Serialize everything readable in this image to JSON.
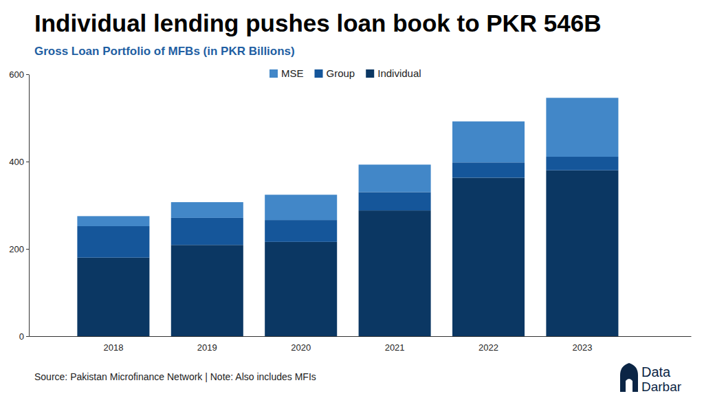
{
  "chart_data": {
    "type": "bar",
    "title": "Individual lending pushes loan book to PKR 546B",
    "subtitle": "Gross Loan Portfolio of MFBs (in PKR Billions)",
    "source": "Source: Pakistan Microfinance Network | Note: Also includes MFIs",
    "logo": [
      "Data",
      "Darbar"
    ],
    "categories": [
      "2018",
      "2019",
      "2020",
      "2021",
      "2022",
      "2023"
    ],
    "series": [
      {
        "name": "MSE",
        "color": "#4287c8",
        "values": [
          23,
          36,
          58,
          63,
          94,
          135
        ]
      },
      {
        "name": "Group",
        "color": "#15569a",
        "values": [
          72,
          62,
          50,
          42,
          35,
          31
        ]
      },
      {
        "name": "Individual",
        "color": "#0b3763",
        "values": [
          180,
          209,
          216,
          288,
          363,
          380
        ]
      }
    ],
    "ylim": [
      0,
      600
    ],
    "yticks": [
      0,
      200,
      400,
      600
    ],
    "stacked": true,
    "grid": false,
    "legend": "top"
  }
}
